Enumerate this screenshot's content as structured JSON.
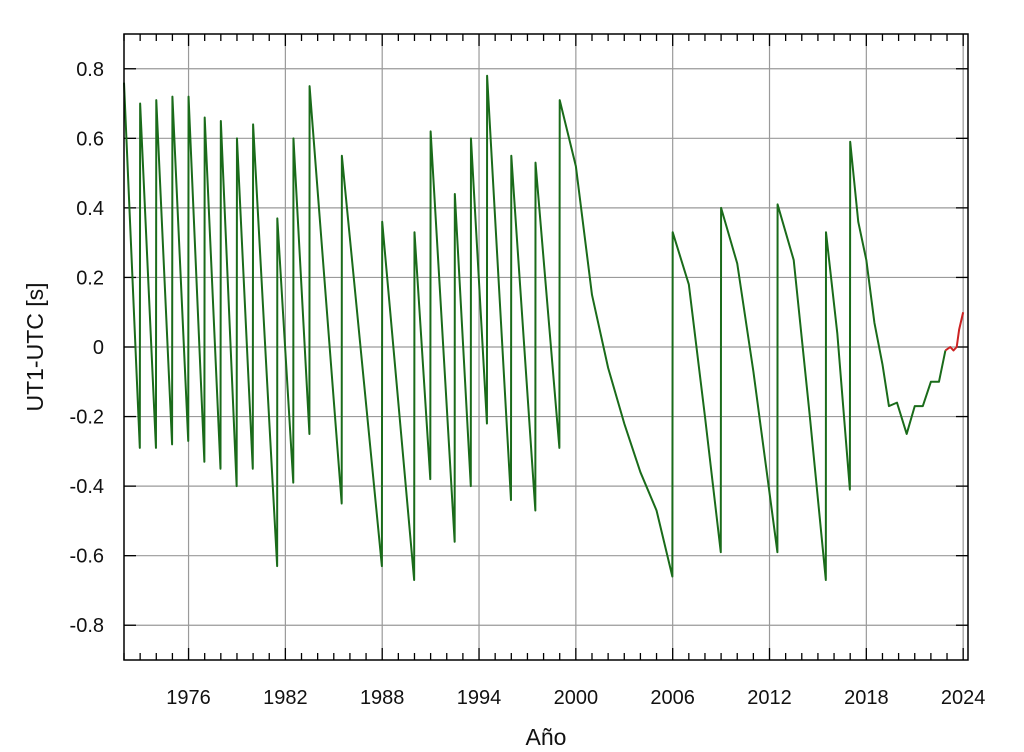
{
  "chart_data": {
    "type": "line",
    "title": "",
    "xlabel": "Año",
    "ylabel": "UT1-UTC [s]",
    "xlim": [
      1972,
      2024.3
    ],
    "ylim": [
      -0.9,
      0.9
    ],
    "x_ticks": [
      1976,
      1982,
      1988,
      1994,
      2000,
      2006,
      2012,
      2018,
      2024
    ],
    "y_ticks": [
      -0.8,
      -0.6,
      -0.4,
      -0.2,
      0,
      0.2,
      0.4,
      0.6,
      0.8
    ],
    "y_tick_labels": [
      "-0.8",
      "-0.6",
      "-0.4",
      "-0.2",
      "0",
      "0.2",
      "0.4",
      "0.6",
      "0.8"
    ],
    "grid": true,
    "series": [
      {
        "color": "#1a6b1a",
        "points": [
          [
            1972.0,
            0.76
          ],
          [
            1972.98,
            -0.29
          ],
          [
            1973.0,
            0.7
          ],
          [
            1973.98,
            -0.29
          ],
          [
            1974.0,
            0.71
          ],
          [
            1974.98,
            -0.28
          ],
          [
            1975.0,
            0.72
          ],
          [
            1975.98,
            -0.27
          ],
          [
            1976.0,
            0.72
          ],
          [
            1976.98,
            -0.33
          ],
          [
            1977.0,
            0.66
          ],
          [
            1977.98,
            -0.35
          ],
          [
            1978.0,
            0.65
          ],
          [
            1978.98,
            -0.4
          ],
          [
            1979.0,
            0.6
          ],
          [
            1979.98,
            -0.35
          ],
          [
            1980.0,
            0.64
          ],
          [
            1981.49,
            -0.63
          ],
          [
            1981.5,
            0.37
          ],
          [
            1982.49,
            -0.39
          ],
          [
            1982.5,
            0.6
          ],
          [
            1983.49,
            -0.25
          ],
          [
            1983.5,
            0.75
          ],
          [
            1985.49,
            -0.45
          ],
          [
            1985.5,
            0.55
          ],
          [
            1987.98,
            -0.63
          ],
          [
            1988.0,
            0.36
          ],
          [
            1989.98,
            -0.67
          ],
          [
            1990.0,
            0.33
          ],
          [
            1990.98,
            -0.38
          ],
          [
            1991.0,
            0.62
          ],
          [
            1992.49,
            -0.56
          ],
          [
            1992.5,
            0.44
          ],
          [
            1993.49,
            -0.4
          ],
          [
            1993.5,
            0.6
          ],
          [
            1994.49,
            -0.22
          ],
          [
            1994.5,
            0.78
          ],
          [
            1995.98,
            -0.44
          ],
          [
            1996.0,
            0.55
          ],
          [
            1997.49,
            -0.47
          ],
          [
            1997.5,
            0.53
          ],
          [
            1998.98,
            -0.29
          ],
          [
            1999.0,
            0.71
          ],
          [
            2000.0,
            0.52
          ],
          [
            2001.0,
            0.15
          ],
          [
            2002.0,
            -0.06
          ],
          [
            2003.0,
            -0.22
          ],
          [
            2004.0,
            -0.36
          ],
          [
            2005.0,
            -0.47
          ],
          [
            2005.98,
            -0.66
          ],
          [
            2006.0,
            0.33
          ],
          [
            2007.0,
            0.18
          ],
          [
            2008.0,
            -0.2
          ],
          [
            2008.98,
            -0.59
          ],
          [
            2009.0,
            0.4
          ],
          [
            2010.0,
            0.24
          ],
          [
            2011.0,
            -0.07
          ],
          [
            2012.49,
            -0.59
          ],
          [
            2012.5,
            0.41
          ],
          [
            2013.5,
            0.25
          ],
          [
            2014.5,
            -0.2
          ],
          [
            2015.49,
            -0.67
          ],
          [
            2015.5,
            0.33
          ],
          [
            2016.2,
            0.04
          ],
          [
            2016.98,
            -0.41
          ],
          [
            2017.0,
            0.59
          ],
          [
            2017.5,
            0.36
          ],
          [
            2018.0,
            0.25
          ],
          [
            2018.5,
            0.07
          ],
          [
            2019.0,
            -0.05
          ],
          [
            2019.4,
            -0.17
          ],
          [
            2019.9,
            -0.16
          ],
          [
            2020.5,
            -0.25
          ],
          [
            2021.0,
            -0.17
          ],
          [
            2021.5,
            -0.17
          ],
          [
            2022.0,
            -0.1
          ],
          [
            2022.5,
            -0.1
          ],
          [
            2022.9,
            -0.01
          ]
        ]
      },
      {
        "color": "#cc2222",
        "points": [
          [
            2022.9,
            -0.01
          ],
          [
            2023.2,
            0.0
          ],
          [
            2023.4,
            -0.01
          ],
          [
            2023.6,
            0.0
          ],
          [
            2023.75,
            0.05
          ],
          [
            2024.0,
            0.1
          ]
        ]
      }
    ]
  }
}
